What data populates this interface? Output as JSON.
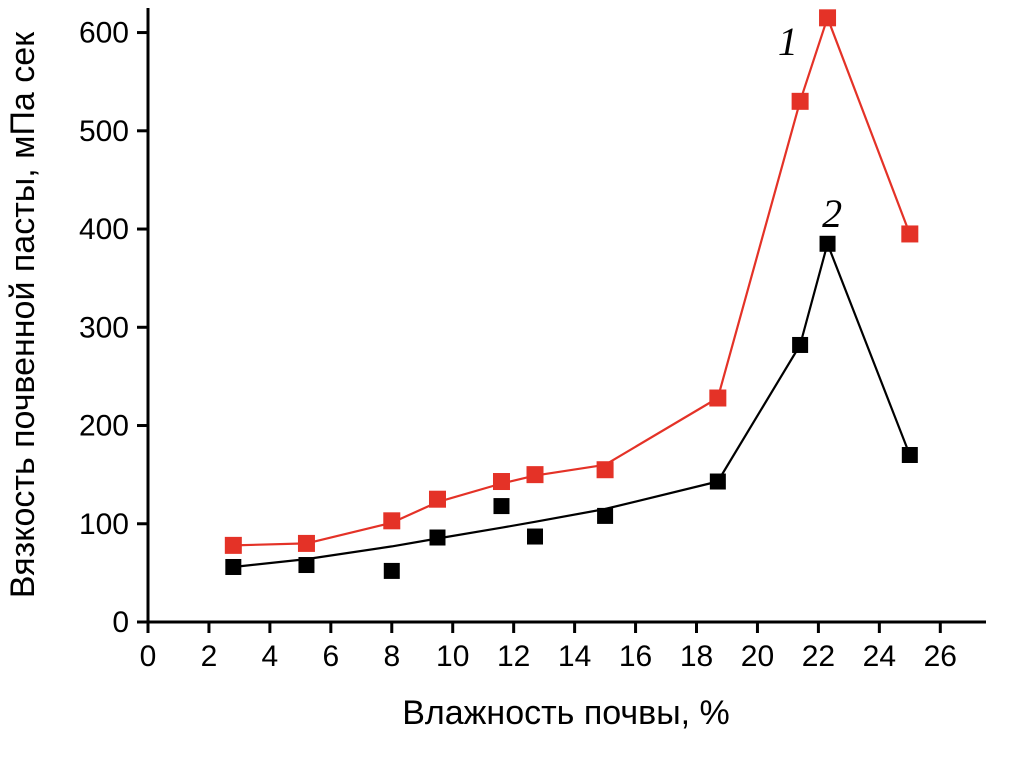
{
  "chart_data": {
    "type": "scatter",
    "title": "",
    "xlabel": "Влажность почвы, %",
    "ylabel": "Вязкость почвенной пасты, мПа сек",
    "xlim": [
      0,
      27.5
    ],
    "ylim": [
      0,
      625
    ],
    "x_ticks": [
      0,
      2,
      4,
      6,
      8,
      10,
      12,
      14,
      16,
      18,
      20,
      22,
      24,
      26
    ],
    "y_ticks": [
      0,
      100,
      200,
      300,
      400,
      500,
      600
    ],
    "grid": false,
    "legend": "none",
    "background_color": "#ffffff",
    "axis_color": "#000000",
    "series": [
      {
        "name": "1",
        "color": "#e43227",
        "marker": "square",
        "points": [
          [
            2.8,
            78
          ],
          [
            5.2,
            80
          ],
          [
            8.0,
            103
          ],
          [
            9.5,
            125
          ],
          [
            11.6,
            143
          ],
          [
            12.7,
            150
          ],
          [
            15.0,
            155
          ],
          [
            18.7,
            228
          ],
          [
            21.4,
            530
          ],
          [
            22.3,
            615
          ],
          [
            25.0,
            395
          ]
        ],
        "line": [
          [
            2.8,
            78
          ],
          [
            5.2,
            80
          ],
          [
            8.0,
            101
          ],
          [
            9.5,
            122
          ],
          [
            11.6,
            141
          ],
          [
            12.7,
            149
          ],
          [
            15.0,
            160
          ],
          [
            18.7,
            228
          ],
          [
            21.4,
            530
          ],
          [
            22.3,
            615
          ],
          [
            25.0,
            395
          ]
        ],
        "annotation": {
          "text": "1",
          "x": 21.0,
          "y": 577
        }
      },
      {
        "name": "2",
        "color": "#000000",
        "marker": "square",
        "points": [
          [
            2.8,
            56
          ],
          [
            5.2,
            58
          ],
          [
            8.0,
            52
          ],
          [
            9.5,
            86
          ],
          [
            11.6,
            118
          ],
          [
            12.7,
            87
          ],
          [
            15.0,
            108
          ],
          [
            18.7,
            143
          ],
          [
            21.4,
            282
          ],
          [
            22.3,
            385
          ],
          [
            25.0,
            170
          ]
        ],
        "line": [
          [
            2.8,
            56
          ],
          [
            5.2,
            64
          ],
          [
            8.0,
            77
          ],
          [
            9.5,
            85
          ],
          [
            11.6,
            96
          ],
          [
            12.7,
            102
          ],
          [
            15.0,
            115
          ],
          [
            18.7,
            143
          ],
          [
            21.4,
            282
          ],
          [
            22.3,
            385
          ],
          [
            25.0,
            170
          ]
        ],
        "annotation": {
          "text": "2",
          "x": 22.45,
          "y": 402
        }
      }
    ]
  }
}
